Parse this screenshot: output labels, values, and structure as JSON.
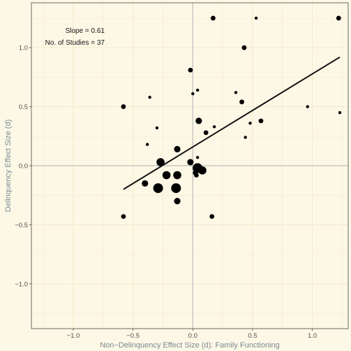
{
  "chart_data": {
    "type": "scatter",
    "xlabel": "Non−Delinquency Effect Size (d): Family Functioning",
    "ylabel": "Delinquency Effect Size (d)",
    "xlim": [
      -1.35,
      1.3
    ],
    "ylim": [
      -1.38,
      1.38
    ],
    "x_ticks": [
      -1.0,
      -0.5,
      0.0,
      0.5,
      1.0
    ],
    "x_tick_labels": [
      "−1.0",
      "−0.5",
      "0.0",
      "0.5",
      "1.0"
    ],
    "y_ticks": [
      -1.0,
      -0.5,
      0.0,
      0.5,
      1.0
    ],
    "y_tick_labels": [
      "−1.0",
      "−0.5",
      "0.0",
      "0.5",
      "1.0"
    ],
    "grid": true,
    "colors": {
      "background": "#fdf8e6",
      "grid": "#f1e7c3",
      "zero_line": "#bdbdbd",
      "points": "#000000",
      "line": "#111111",
      "axis_frame": "#444444"
    },
    "annotations": [
      "Slope = 0.61",
      "No. of Studies = 37"
    ],
    "regression_line": {
      "slope": 0.61,
      "x": [
        -0.58,
        1.23
      ],
      "y": [
        -0.2,
        0.92
      ]
    },
    "points": [
      {
        "x": 0.17,
        "y": 1.25,
        "size": 2
      },
      {
        "x": 0.53,
        "y": 1.25,
        "size": 1
      },
      {
        "x": 1.22,
        "y": 1.25,
        "size": 2
      },
      {
        "x": 0.43,
        "y": 1.0,
        "size": 2
      },
      {
        "x": -0.02,
        "y": 0.81,
        "size": 2
      },
      {
        "x": 0.04,
        "y": 0.64,
        "size": 1
      },
      {
        "x": 0.0,
        "y": 0.61,
        "size": 1
      },
      {
        "x": 0.36,
        "y": 0.62,
        "size": 1
      },
      {
        "x": -0.36,
        "y": 0.58,
        "size": 1
      },
      {
        "x": 0.41,
        "y": 0.54,
        "size": 2
      },
      {
        "x": -0.58,
        "y": 0.5,
        "size": 2
      },
      {
        "x": 0.96,
        "y": 0.5,
        "size": 1
      },
      {
        "x": 1.23,
        "y": 0.45,
        "size": 1
      },
      {
        "x": 0.05,
        "y": 0.38,
        "size": 3
      },
      {
        "x": 0.57,
        "y": 0.38,
        "size": 2
      },
      {
        "x": 0.48,
        "y": 0.36,
        "size": 1
      },
      {
        "x": 0.18,
        "y": 0.33,
        "size": 1
      },
      {
        "x": -0.3,
        "y": 0.32,
        "size": 1
      },
      {
        "x": 0.11,
        "y": 0.28,
        "size": 2
      },
      {
        "x": 0.44,
        "y": 0.24,
        "size": 1
      },
      {
        "x": -0.38,
        "y": 0.18,
        "size": 1
      },
      {
        "x": -0.13,
        "y": 0.14,
        "size": 3
      },
      {
        "x": 0.04,
        "y": 0.07,
        "size": 1
      },
      {
        "x": -0.27,
        "y": 0.03,
        "size": 4
      },
      {
        "x": -0.02,
        "y": 0.03,
        "size": 3
      },
      {
        "x": 0.04,
        "y": -0.02,
        "size": 5
      },
      {
        "x": 0.08,
        "y": -0.04,
        "size": 4
      },
      {
        "x": 0.02,
        "y": -0.06,
        "size": 2
      },
      {
        "x": 0.03,
        "y": -0.08,
        "size": 2
      },
      {
        "x": -0.22,
        "y": -0.08,
        "size": 4
      },
      {
        "x": -0.13,
        "y": -0.08,
        "size": 4
      },
      {
        "x": -0.4,
        "y": -0.15,
        "size": 3
      },
      {
        "x": -0.29,
        "y": -0.19,
        "size": 5
      },
      {
        "x": -0.14,
        "y": -0.19,
        "size": 5
      },
      {
        "x": -0.13,
        "y": -0.3,
        "size": 3
      },
      {
        "x": -0.58,
        "y": -0.43,
        "size": 2
      },
      {
        "x": 0.16,
        "y": -0.43,
        "size": 2
      }
    ]
  }
}
